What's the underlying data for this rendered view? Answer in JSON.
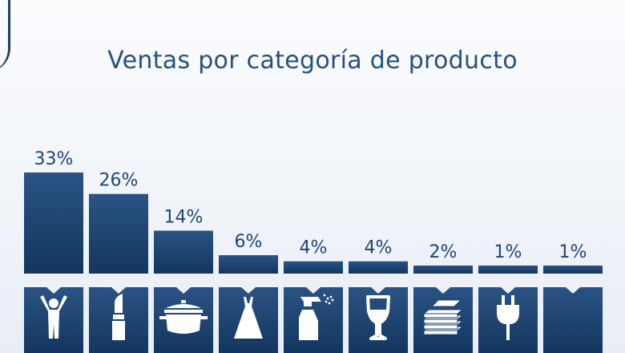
{
  "title": "Ventas por categoría de producto",
  "colors": {
    "bar_top": "#2a5384",
    "bar_bottom": "#13365f",
    "label": "#1f4575",
    "icon": "#ffffff"
  },
  "chart_data": {
    "type": "bar",
    "title": "Ventas por categoría de producto",
    "categories": [
      "person-icon",
      "lipstick-icon",
      "pot-icon",
      "dress-icon",
      "spray-bottle-icon",
      "wine-glass-icon",
      "books-icon",
      "plug-icon",
      "blank-icon"
    ],
    "values": [
      33,
      26,
      14,
      6,
      4,
      4,
      2,
      1,
      1
    ],
    "value_labels": [
      "33%",
      "26%",
      "14%",
      "6%",
      "4%",
      "4%",
      "2%",
      "1%",
      "1%"
    ],
    "ylim": [
      0,
      33
    ],
    "grid": false,
    "legend": "none"
  }
}
